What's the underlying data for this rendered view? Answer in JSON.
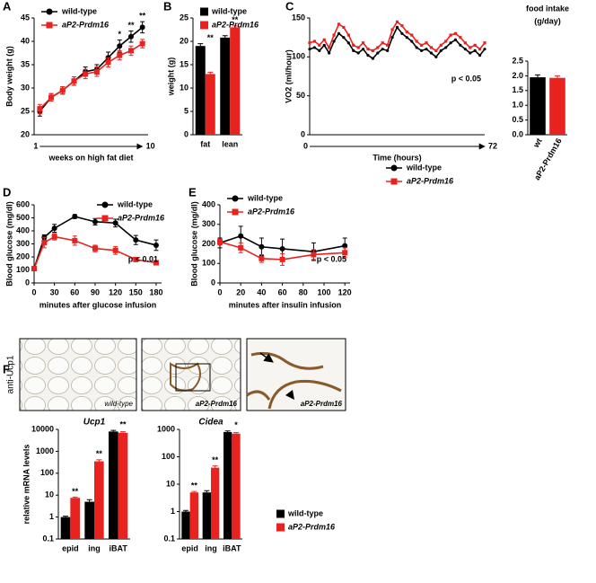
{
  "chart_data": [
    {
      "type": "line",
      "panel": "A",
      "y_label": "Body weight (g)",
      "x_label": "weeks on high fat diet",
      "x_arrow": true,
      "x": [
        1,
        2,
        3,
        4,
        5,
        6,
        7,
        8,
        9,
        10
      ],
      "xlim": [
        0.5,
        10.5
      ],
      "xticks": [
        1,
        10
      ],
      "ylim": [
        20,
        45
      ],
      "yticks": [
        20,
        25,
        30,
        35,
        40,
        45
      ],
      "legend": "top-left",
      "series": [
        {
          "name": "wild-type",
          "color": "#000000",
          "marker": "circle",
          "values": [
            25,
            28,
            29.5,
            31.5,
            33.5,
            34,
            36.5,
            39,
            41,
            43
          ],
          "errors": [
            1,
            0.8,
            0.8,
            0.9,
            1,
            1,
            1.2,
            1.3,
            1.2,
            1.2
          ]
        },
        {
          "name": "aP2-Prdm16",
          "color": "#e8221f",
          "marker": "square",
          "values": [
            25.5,
            28,
            29.5,
            31.5,
            33,
            33.5,
            35.5,
            37,
            38,
            39.5
          ],
          "errors": [
            1,
            0.8,
            0.8,
            0.9,
            1,
            1,
            1,
            1,
            1,
            0.9
          ],
          "significance": [
            null,
            null,
            null,
            null,
            null,
            null,
            null,
            "*",
            "**",
            "**"
          ]
        }
      ]
    },
    {
      "type": "bar",
      "panel": "B",
      "y_label": "weight (g)",
      "categories": [
        "fat",
        "lean"
      ],
      "ylim": [
        0,
        25
      ],
      "yticks": [
        0,
        5,
        10,
        15,
        20,
        25
      ],
      "legend": "top-left",
      "series": [
        {
          "name": "wild-type",
          "color": "#000000",
          "values": [
            19,
            20.8
          ],
          "errors": [
            0.5,
            0.4
          ]
        },
        {
          "name": "aP2-Prdm16",
          "color": "#e8221f",
          "values": [
            13,
            23
          ],
          "errors": [
            0.4,
            0.3
          ],
          "significance": [
            "**",
            "**"
          ]
        }
      ]
    },
    {
      "type": "line",
      "panel": "C",
      "y_label": "VO2 (ml/hour)",
      "x_label": "Time (hours)",
      "x_arrow": true,
      "note": "p < 0.05",
      "x": [
        0,
        2,
        4,
        6,
        8,
        10,
        12,
        14,
        16,
        18,
        20,
        22,
        24,
        26,
        28,
        30,
        32,
        34,
        36,
        38,
        40,
        42,
        44,
        46,
        48,
        50,
        52,
        54,
        56,
        58,
        60,
        62,
        64,
        66,
        68,
        70,
        72
      ],
      "xlim": [
        0,
        72
      ],
      "xticks": [
        0,
        72
      ],
      "ylim": [
        0,
        150
      ],
      "yticks": [
        0,
        50,
        100,
        150
      ],
      "legend": "bottom-right",
      "series": [
        {
          "name": "wild-type",
          "color": "#000000",
          "marker": "circle",
          "values": [
            110,
            112,
            108,
            115,
            105,
            120,
            130,
            125,
            118,
            108,
            105,
            110,
            102,
            98,
            105,
            110,
            108,
            125,
            138,
            130,
            125,
            120,
            112,
            108,
            110,
            105,
            100,
            108,
            112,
            118,
            122,
            115,
            110,
            105,
            108,
            102,
            110
          ]
        },
        {
          "name": "aP2-Prdm16",
          "color": "#e8221f",
          "marker": "square",
          "values": [
            118,
            120,
            115,
            122,
            112,
            128,
            142,
            138,
            128,
            115,
            112,
            118,
            110,
            108,
            112,
            118,
            115,
            135,
            145,
            140,
            132,
            128,
            120,
            115,
            118,
            112,
            108,
            115,
            120,
            128,
            130,
            125,
            118,
            112,
            115,
            110,
            118
          ]
        }
      ]
    },
    {
      "type": "bar",
      "title_lines": [
        "food intake",
        "(g/day)"
      ],
      "categories": [
        "wt",
        "aP2-Prdm16"
      ],
      "values": [
        1.95,
        1.93
      ],
      "errors": [
        0.08,
        0.07
      ],
      "colors": [
        "#000000",
        "#e8221f"
      ],
      "ylim": [
        0,
        2.5
      ],
      "yticks": [
        {
          "value": 0,
          "label": "0.0"
        },
        {
          "value": 0.5,
          "label": "0.5"
        },
        {
          "value": 1,
          "label": "1.0"
        },
        {
          "value": 1.5,
          "label": "1.5"
        },
        {
          "value": 2,
          "label": "2.0"
        },
        {
          "value": 2.5,
          "label": "2.5"
        }
      ]
    },
    {
      "type": "line",
      "panel": "D",
      "y_label": "Blood glucose (mg/dl)",
      "x_label": "minutes after glucose infusion",
      "note": "p < 0.01",
      "x": [
        0,
        15,
        30,
        60,
        90,
        120,
        150,
        180
      ],
      "xlim": [
        0,
        188
      ],
      "xticks": [
        0,
        30,
        60,
        90,
        120,
        150,
        180
      ],
      "ylim": [
        0,
        600
      ],
      "yticks": [
        0,
        100,
        200,
        300,
        400,
        500,
        600
      ],
      "legend": "top-right",
      "series": [
        {
          "name": "wild-type",
          "color": "#000000",
          "marker": "circle",
          "values": [
            110,
            350,
            420,
            510,
            470,
            460,
            330,
            290
          ],
          "errors": [
            10,
            20,
            30,
            15,
            25,
            30,
            35,
            40
          ]
        },
        {
          "name": "aP2-Prdm16",
          "color": "#e8221f",
          "marker": "square",
          "values": [
            110,
            310,
            355,
            325,
            265,
            250,
            180,
            155
          ],
          "errors": [
            10,
            40,
            25,
            35,
            25,
            30,
            15,
            15
          ]
        }
      ]
    },
    {
      "type": "line",
      "panel": "E",
      "y_label": "Blood glucose (mg/dl)",
      "x_label": "minutes after insulin infusion",
      "note": "p < 0.05",
      "x": [
        0,
        20,
        40,
        60,
        90,
        120
      ],
      "xlim": [
        0,
        125
      ],
      "xticks": [
        0,
        20,
        40,
        60,
        80,
        100,
        120
      ],
      "ylim": [
        0,
        400
      ],
      "yticks": [
        0,
        100,
        200,
        300,
        400
      ],
      "legend": "top-left",
      "series": [
        {
          "name": "wild-type",
          "color": "#000000",
          "marker": "circle",
          "values": [
            205,
            240,
            185,
            175,
            160,
            190
          ],
          "errors": [
            25,
            50,
            45,
            50,
            45,
            40
          ]
        },
        {
          "name": "aP2-Prdm16",
          "color": "#e8221f",
          "marker": "square",
          "values": [
            210,
            180,
            125,
            120,
            145,
            155
          ],
          "errors": [
            15,
            25,
            20,
            30,
            25,
            25
          ]
        }
      ]
    },
    {
      "type": "bar",
      "title": "Ucp1",
      "y_label": "relative mRNA levels",
      "log_scale": true,
      "categories": [
        "epid",
        "ing",
        "iBAT"
      ],
      "ylim": [
        0.1,
        10000
      ],
      "yticks": [
        0.1,
        1,
        10,
        100,
        1000,
        10000
      ],
      "series": [
        {
          "color": "#000000",
          "values": [
            1,
            5,
            8000
          ],
          "errors": [
            0.1,
            1.2,
            1000
          ]
        },
        {
          "color": "#e8221f",
          "values": [
            7.5,
            350,
            7000
          ],
          "errors": [
            0.6,
            60,
            800
          ],
          "significance": [
            "**",
            "**",
            "**"
          ]
        }
      ]
    },
    {
      "type": "bar",
      "title": "Cidea",
      "log_scale": true,
      "categories": [
        "epid",
        "ing",
        "iBAT"
      ],
      "ylim": [
        0.1,
        1000
      ],
      "yticks": [
        0.1,
        1,
        10,
        100,
        1000
      ],
      "legend": "right",
      "series": [
        {
          "name": "wild-type",
          "color": "#000000",
          "values": [
            1,
            5,
            800
          ],
          "errors": [
            0.1,
            0.8,
            80
          ]
        },
        {
          "name": "aP2-Prdm16",
          "color": "#e8221f",
          "values": [
            5,
            40,
            700
          ],
          "errors": [
            0.4,
            6,
            60
          ],
          "significance": [
            "**",
            "**",
            "*"
          ]
        }
      ]
    }
  ],
  "histology": {
    "panel": "F",
    "stain": "anti-Ucp1",
    "labels": [
      "wild-type",
      "aP2-Prdm16",
      "aP2-Prdm16"
    ]
  }
}
